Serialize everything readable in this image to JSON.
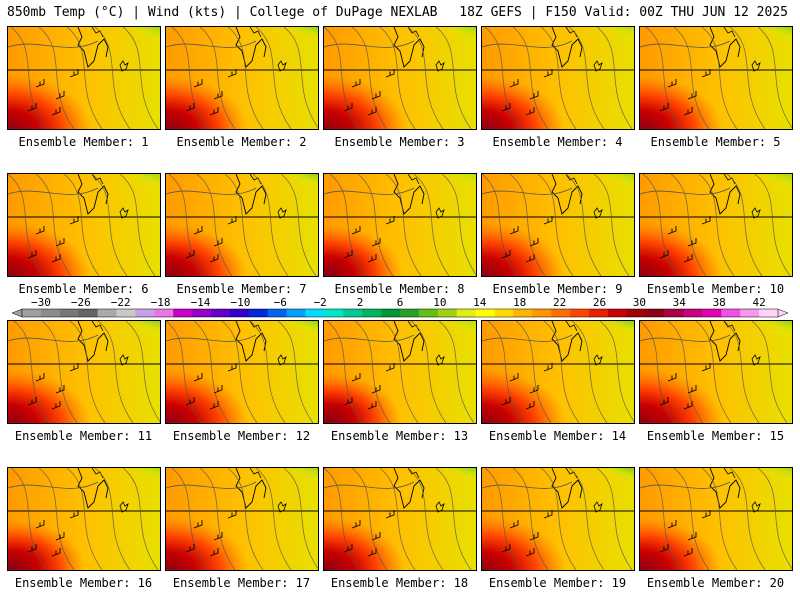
{
  "header": {
    "left": "850mb Temp (°C) | Wind (kts) | College of DuPage NEXLAB",
    "right": "18Z GEFS | F150 Valid: 00Z THU JUN 12 2025"
  },
  "member_label_prefix": "Ensemble Member: ",
  "members": [
    {
      "id": 1,
      "label": "Ensemble Member: 1",
      "warm": 0.85,
      "cool": 0.25
    },
    {
      "id": 2,
      "label": "Ensemble Member: 2",
      "warm": 0.75,
      "cool": 0.2
    },
    {
      "id": 3,
      "label": "Ensemble Member: 3",
      "warm": 0.85,
      "cool": 0.3
    },
    {
      "id": 4,
      "label": "Ensemble Member: 4",
      "warm": 0.8,
      "cool": 0.55
    },
    {
      "id": 5,
      "label": "Ensemble Member: 5",
      "warm": 0.8,
      "cool": 0.2
    },
    {
      "id": 6,
      "label": "Ensemble Member: 6",
      "warm": 0.8,
      "cool": 0.35
    },
    {
      "id": 7,
      "label": "Ensemble Member: 7",
      "warm": 0.75,
      "cool": 0.15
    },
    {
      "id": 8,
      "label": "Ensemble Member: 8",
      "warm": 0.65,
      "cool": 0.65
    },
    {
      "id": 9,
      "label": "Ensemble Member: 9",
      "warm": 0.8,
      "cool": 0.35
    },
    {
      "id": 10,
      "label": "Ensemble Member: 10",
      "warm": 0.8,
      "cool": 0.3
    },
    {
      "id": 11,
      "label": "Ensemble Member: 11",
      "warm": 0.8,
      "cool": 0.15
    },
    {
      "id": 12,
      "label": "Ensemble Member: 12",
      "warm": 0.8,
      "cool": 0.25
    },
    {
      "id": 13,
      "label": "Ensemble Member: 13",
      "warm": 0.6,
      "cool": 0.6
    },
    {
      "id": 14,
      "label": "Ensemble Member: 14",
      "warm": 0.85,
      "cool": 0.15
    },
    {
      "id": 15,
      "label": "Ensemble Member: 15",
      "warm": 0.85,
      "cool": 0.2
    },
    {
      "id": 16,
      "label": "Ensemble Member: 16",
      "warm": 0.6,
      "cool": 0.5
    },
    {
      "id": 17,
      "label": "Ensemble Member: 17",
      "warm": 0.8,
      "cool": 0.3
    },
    {
      "id": 18,
      "label": "Ensemble Member: 18",
      "warm": 0.75,
      "cool": 0.15
    },
    {
      "id": 19,
      "label": "Ensemble Member: 19",
      "warm": 0.85,
      "cool": 0.1
    },
    {
      "id": 20,
      "label": "Ensemble Member: 20",
      "warm": 0.75,
      "cool": 0.35
    }
  ],
  "colorbar": {
    "ticks": [
      "−30",
      "−26",
      "−22",
      "−18",
      "−14",
      "−10",
      "−6",
      "−2",
      "2",
      "6",
      "10",
      "14",
      "18",
      "22",
      "26",
      "30",
      "34",
      "38",
      "42"
    ],
    "colors": [
      "#a0a0a0",
      "#8c8c8c",
      "#787878",
      "#646464",
      "#aaaaaa",
      "#c8c8c8",
      "#c8a0e6",
      "#e678e6",
      "#c800c8",
      "#9600c8",
      "#6400c8",
      "#3200c8",
      "#0028dc",
      "#0064f0",
      "#00a0ff",
      "#00dcff",
      "#00e6c8",
      "#00c896",
      "#00b464",
      "#009632",
      "#28a028",
      "#64be14",
      "#a0d214",
      "#dcf014",
      "#ffff00",
      "#ffdc00",
      "#ffb400",
      "#ff9600",
      "#ff6e00",
      "#ff4600",
      "#eb1e00",
      "#c80000",
      "#a00000",
      "#8c0014",
      "#aa0046",
      "#c8007d",
      "#e600b4",
      "#f050e6",
      "#f896f0",
      "#ffd2fa"
    ]
  }
}
